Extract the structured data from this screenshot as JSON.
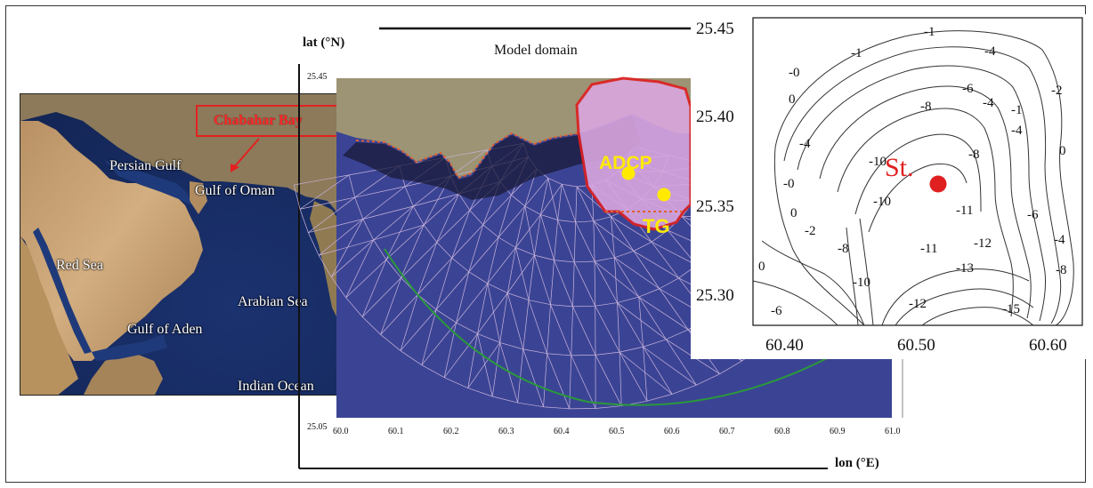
{
  "regional_map": {
    "labels": {
      "chabahar_bay": "Chabahar Bay",
      "persian_gulf": "Persian Gulf",
      "gulf_of_oman": "Gulf of Oman",
      "red_sea": "Red Sea",
      "arabian_sea": "Arabian Sea",
      "gulf_of_aden": "Gulf of Aden",
      "indian_ocean": "Indian Ocean"
    },
    "colors": {
      "land": "#c9a274",
      "sea": "#1f3a7a",
      "highlight": "#e52020"
    }
  },
  "model_domain": {
    "title": "Model domain",
    "ylabel": "lat (°N)",
    "xlabel": "lon (°E)",
    "y_ticks": [
      "25.45",
      "25.05"
    ],
    "x_ticks": [
      "60.0",
      "60.1",
      "60.2",
      "60.3",
      "60.4",
      "60.5",
      "60.6",
      "60.7",
      "60.8",
      "60.9",
      "61.0"
    ],
    "stations": [
      "ADCP",
      "TG"
    ],
    "colors": {
      "mesh_sea": "#4a4fa8",
      "mesh_lines": "#c0a8d8",
      "bay": "#d8a8e0",
      "bay_outline": "#e02020",
      "station": "#ffea00",
      "open_boundary": "#2a9a3a"
    }
  },
  "bathymetry": {
    "y_ticks": [
      "25.45",
      "25.40",
      "25.35",
      "25.30"
    ],
    "x_ticks": [
      "60.40",
      "60.50",
      "60.60"
    ],
    "station_label": "St.",
    "contour_labels": [
      "-1",
      "-1",
      "-4",
      "-0",
      "0",
      "-6",
      "-2",
      "-8",
      "-4",
      "-1",
      "-8",
      "-4",
      "0",
      "-4",
      "-10",
      "-0",
      "-10",
      "-6",
      "0",
      "-2",
      "-11",
      "-8",
      "-4",
      "-11",
      "-12",
      "-8",
      "-13",
      "-10",
      "0",
      "-12",
      "-15",
      "-6"
    ],
    "colors": {
      "station": "#e02020",
      "contour": "#333333"
    }
  }
}
